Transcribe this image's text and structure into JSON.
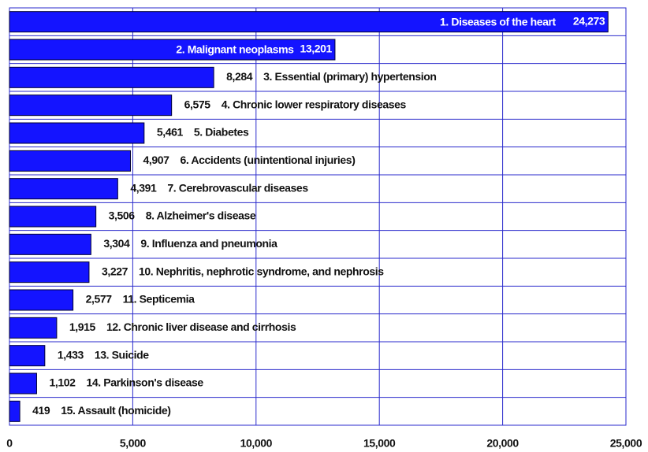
{
  "chart_data": {
    "type": "barh",
    "categories": [
      "1.  Diseases of the heart",
      "2.  Malignant neoplasms",
      "3.  Essential (primary) hypertension",
      "4.  Chronic lower respiratory diseases",
      "5.  Diabetes",
      "6.  Accidents (unintentional injuries)",
      "7.  Cerebrovascular diseases",
      "8.  Alzheimer's disease",
      "9.  Influenza and pneumonia",
      "10.  Nephritis, nephrotic syndrome, and nephrosis",
      "11.  Septicemia",
      "12.  Chronic liver disease and cirrhosis",
      "13.  Suicide",
      "14.  Parkinson's disease",
      "15.  Assault (homicide)"
    ],
    "values": [
      24273,
      13201,
      8284,
      6575,
      5461,
      4907,
      4391,
      3506,
      3304,
      3227,
      2577,
      1915,
      1433,
      1102,
      419
    ],
    "value_labels": [
      "24,273",
      "13,201",
      "8,284",
      "6,575",
      "5,461",
      "4,907",
      "4,391",
      "3,506",
      "3,304",
      "3,227",
      "2,577",
      "1,915",
      "1,433",
      "1,102",
      "419"
    ],
    "color": "#1414ff",
    "xlim": [
      0,
      25000
    ],
    "xticks": [
      0,
      {
        "value": 5000,
        "label": "5,000"
      },
      {
        "value": 10000,
        "label": "10,000"
      },
      {
        "value": 15000,
        "label": "15,000"
      },
      {
        "value": 20000,
        "label": "20,000"
      },
      {
        "value": 25000,
        "label": "25,000"
      }
    ],
    "grid": true
  }
}
